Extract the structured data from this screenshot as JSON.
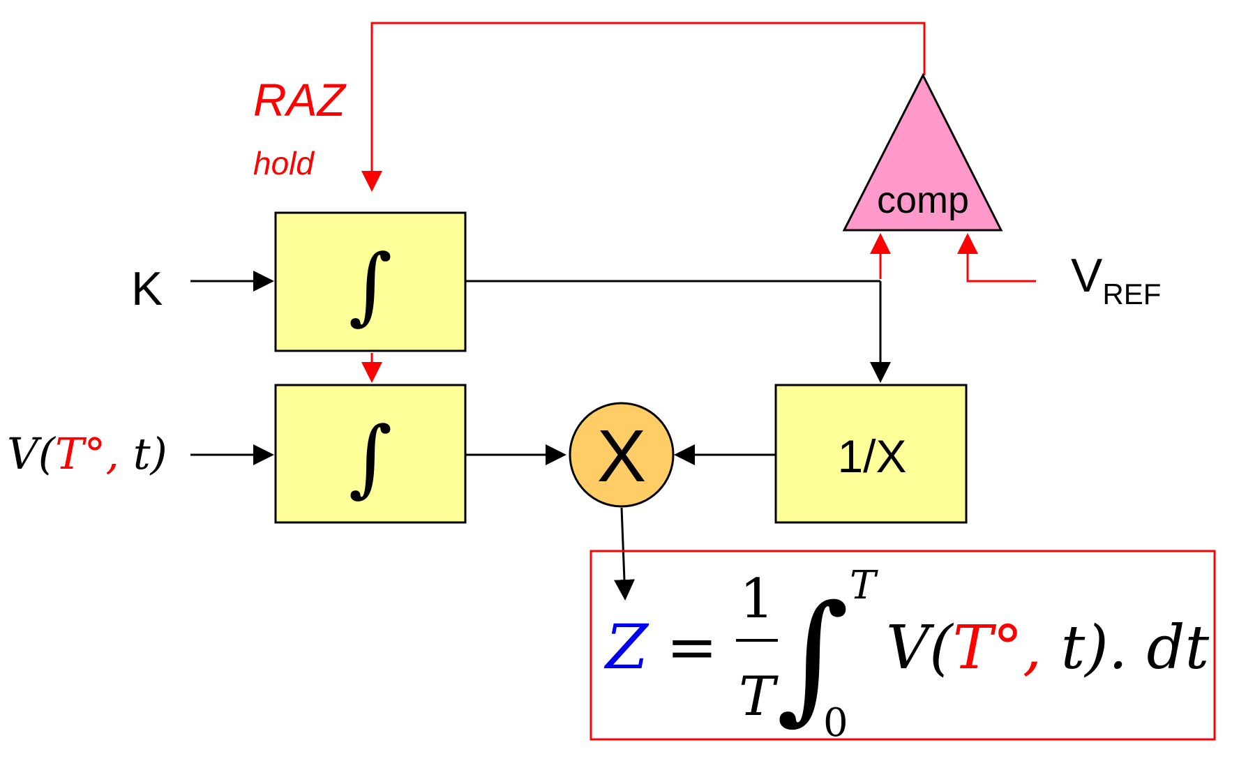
{
  "colors": {
    "wire_black": "#000000",
    "wire_red": "#ff0000",
    "block_fill": "#ffff99",
    "multiplier_fill": "#ffcc66",
    "comparator_fill": "#ff99cc",
    "formula_blue": "#0000ee",
    "formula_red": "#ff0000"
  },
  "labels": {
    "raz": "RAZ",
    "hold": "hold",
    "k_input": "K",
    "v_input_open": "V(",
    "v_input_T": "T°",
    "v_input_comma": ",",
    "v_input_close": " t)",
    "vref_main": "V",
    "vref_sub": "REF"
  },
  "blocks": {
    "integrator_top": "∫",
    "integrator_bottom": "∫",
    "multiplier": "X",
    "reciprocal": "1/X",
    "comparator": "comp"
  },
  "formula": {
    "lhs": "Z",
    "equals": "=",
    "frac_num": "1",
    "frac_den": "T",
    "integral": "∫",
    "upper_limit": "T",
    "lower_limit": "0",
    "integrand_open": "V(",
    "integrand_T": "T°",
    "integrand_comma": ",",
    "integrand_close": " t). dt"
  }
}
